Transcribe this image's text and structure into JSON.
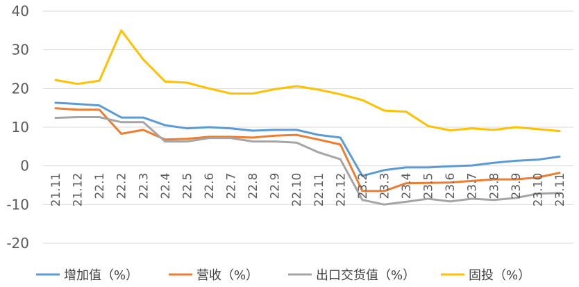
{
  "chart_data": {
    "type": "line",
    "title": "",
    "xlabel": "",
    "ylabel": "",
    "ylim": [
      -20,
      40
    ],
    "yticks": [
      40,
      30,
      20,
      10,
      0,
      -10,
      -20
    ],
    "grid": "horizontal",
    "legend_position": "bottom",
    "categories": [
      "21.11",
      "21.12",
      "22.1",
      "22.2",
      "22.3",
      "22.4",
      "22.5",
      "22.6",
      "22.7",
      "22.8",
      "22.9",
      "22.10",
      "22.11",
      "22.12",
      "23.2",
      "23.3",
      "23.4",
      "23.5",
      "23.6",
      "23.7",
      "23.8",
      "23.9",
      "23.10",
      "23.11"
    ],
    "series": [
      {
        "name": "增加值（%）",
        "color": "#5B9BD5",
        "values": [
          16.3,
          16.0,
          15.6,
          12.5,
          12.5,
          10.5,
          9.7,
          10.0,
          9.7,
          9.1,
          9.3,
          9.3,
          8.0,
          7.3,
          -2.6,
          -1.1,
          -0.4,
          -0.4,
          -0.1,
          0.1,
          0.8,
          1.3,
          1.6,
          2.4
        ]
      },
      {
        "name": "营收（%）",
        "color": "#ED7D31",
        "values": [
          14.9,
          14.5,
          14.5,
          8.3,
          9.3,
          6.8,
          7.0,
          7.5,
          7.5,
          7.3,
          7.8,
          8.0,
          6.8,
          5.5,
          -6.5,
          -6.5,
          -4.5,
          -4.4,
          -4.3,
          -3.9,
          -3.5,
          -3.5,
          -3.0,
          -1.8
        ]
      },
      {
        "name": "出口交货值（%）",
        "color": "#A5A5A5",
        "values": [
          12.4,
          12.6,
          12.6,
          11.3,
          11.3,
          6.3,
          6.3,
          7.2,
          7.2,
          6.3,
          6.3,
          6.0,
          3.5,
          1.7,
          -8.8,
          -10.0,
          -9.3,
          -8.5,
          -9.2,
          -8.5,
          -8.8,
          -8.3,
          -7.2,
          -7.0
        ]
      },
      {
        "name": "固投（%）",
        "color": "#FFC000",
        "values": [
          22.2,
          21.2,
          22.0,
          35.0,
          27.5,
          21.8,
          21.5,
          20.0,
          18.7,
          18.7,
          19.8,
          20.6,
          19.7,
          18.5,
          17.0,
          14.3,
          14.0,
          10.3,
          9.2,
          9.7,
          9.3,
          10.0,
          9.5,
          9.0
        ]
      }
    ]
  }
}
